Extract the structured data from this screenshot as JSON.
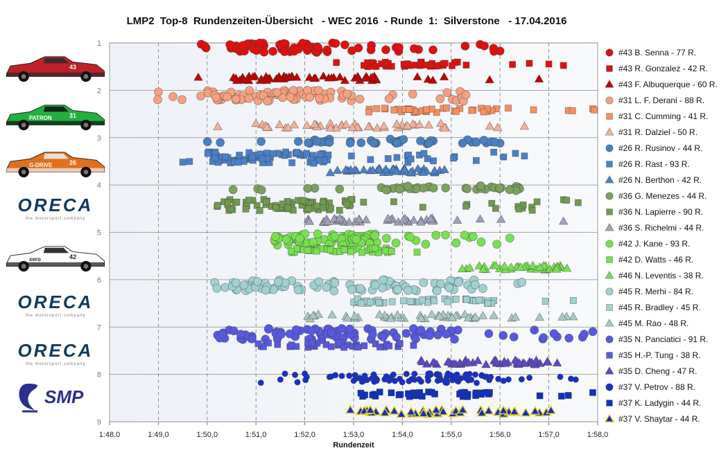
{
  "chart_data": {
    "type": "scatter",
    "title": "LMP2  Top-8  Rundenzeiten-Übersicht   - WEC 2016  - Runde  1:  Silverstone   - 17.04.2016",
    "xlabel": "Rundenzeit",
    "ylabel": "",
    "x_ticks": [
      "1:48,0",
      "1:49,0",
      "1:50,0",
      "1:51,0",
      "1:52,0",
      "1:53,0",
      "1:54,0",
      "1:55,0",
      "1:56,0",
      "1:57,0",
      "1:58,0"
    ],
    "xlim_seconds": [
      108,
      118
    ],
    "y_ticks": [
      "1",
      "2",
      "3",
      "4",
      "5",
      "6",
      "7",
      "8",
      "9"
    ],
    "ylim": [
      1,
      9
    ],
    "y_reversed": true,
    "x_grid": true,
    "y_grid": true,
    "legend_position": "right",
    "series": [
      {
        "name": "#43 B. Senna - 77 R.",
        "marker": "circle",
        "color": "#e01010",
        "y": 1.1,
        "spread": 0.1,
        "count": 77,
        "x_range": [
          109.65,
          116.0
        ],
        "dense": [
          110.4,
          113.0
        ],
        "outliers": [
          116.0
        ]
      },
      {
        "name": "#43 R. Gonzalez - 42 R.",
        "marker": "square",
        "color": "#e01010",
        "y": 1.45,
        "spread": 0.05,
        "count": 42,
        "x_range": [
          112.5,
          117.3
        ],
        "dense": [
          113.2,
          115.4
        ],
        "outliers": [
          116.6,
          117.0,
          117.3
        ]
      },
      {
        "name": "#43 F. Albuquerque - 60 R.",
        "marker": "triangle",
        "color": "#c00000",
        "y": 1.75,
        "spread": 0.05,
        "count": 60,
        "x_range": [
          109.8,
          116.8
        ],
        "dense": [
          110.5,
          113.5
        ],
        "outliers": [
          116.8
        ]
      },
      {
        "name": "#31 L. F. Derani - 88 R.",
        "marker": "circle",
        "color": "#f5a080",
        "y": 2.12,
        "spread": 0.12,
        "count": 88,
        "x_range": [
          108.9,
          115.5
        ],
        "dense": [
          110.0,
          113.0
        ],
        "outliers": [
          109.0,
          109.3
        ]
      },
      {
        "name": "#31 C. Cumming - 41 R.",
        "marker": "square",
        "color": "#f59060",
        "y": 2.42,
        "spread": 0.05,
        "count": 41,
        "x_range": [
          113.3,
          118.0
        ],
        "dense": [
          113.3,
          116.0
        ],
        "outliers": [
          117.4,
          117.9
        ]
      },
      {
        "name": "#31 R. Dalziel - 50 R.",
        "marker": "triangle",
        "color": "#f5b09a",
        "y": 2.75,
        "spread": 0.05,
        "count": 50,
        "x_range": [
          109.9,
          116.7
        ],
        "dense": [
          111.0,
          115.0
        ],
        "outliers": [
          116.5
        ]
      },
      {
        "name": "#26 R. Rusinov - 44 R.",
        "marker": "circle",
        "color": "#4a7fc0",
        "y": 3.08,
        "spread": 0.05,
        "count": 44,
        "x_range": [
          110.0,
          116.0
        ],
        "dense": [
          112.0,
          115.0
        ],
        "outliers": [
          115.5,
          116.0
        ]
      },
      {
        "name": "#26 R. Rast - 93 R.",
        "marker": "square",
        "color": "#4a80c8",
        "y": 3.42,
        "spread": 0.12,
        "count": 93,
        "x_range": [
          109.5,
          116.5
        ],
        "dense": [
          110.0,
          112.5
        ],
        "outliers": [
          109.5,
          116.5
        ]
      },
      {
        "name": "#26 N. Berthon - 42 R.",
        "marker": "triangle",
        "color": "#4a80c8",
        "y": 3.7,
        "spread": 0.05,
        "count": 42,
        "x_range": [
          112.5,
          115.0
        ],
        "dense": [
          112.8,
          114.8
        ],
        "outliers": []
      },
      {
        "name": "#36 G. Menezes - 44 R.",
        "marker": "circle",
        "color": "#7ba060",
        "y": 4.07,
        "spread": 0.05,
        "count": 44,
        "x_range": [
          110.3,
          117.3
        ],
        "dense": [
          113.5,
          116.5
        ],
        "outliers": []
      },
      {
        "name": "#36 N. Lapierre - 90 R.",
        "marker": "square",
        "color": "#709a50",
        "y": 4.42,
        "spread": 0.12,
        "count": 90,
        "x_range": [
          109.9,
          117.6
        ],
        "dense": [
          110.2,
          113.0
        ],
        "outliers": [
          117.3,
          117.6
        ]
      },
      {
        "name": "#36 S. Richelmi - 44 R.",
        "marker": "triangle",
        "color": "#a0a0b8",
        "y": 4.75,
        "spread": 0.05,
        "count": 44,
        "x_range": [
          112.0,
          117.3
        ],
        "dense": [
          112.3,
          115.0
        ],
        "outliers": [
          117.3
        ]
      },
      {
        "name": "#42 J. Kane - 93 R.",
        "marker": "circle",
        "color": "#78e050",
        "y": 5.15,
        "spread": 0.12,
        "count": 93,
        "x_range": [
          111.0,
          116.2
        ],
        "dense": [
          111.3,
          113.5
        ],
        "outliers": [
          115.1,
          116.2
        ]
      },
      {
        "name": "#42 D. Watts - 46 R.",
        "marker": "square",
        "color": "#78e050",
        "y": 5.38,
        "spread": 0.05,
        "count": 46,
        "x_range": [
          111.5,
          114.3
        ],
        "dense": [
          111.5,
          113.8
        ],
        "outliers": [
          114.3
        ]
      },
      {
        "name": "#46 N. Leventis - 38 R.",
        "marker": "triangle",
        "color": "#78e050",
        "y": 5.75,
        "spread": 0.05,
        "count": 38,
        "x_range": [
          115.0,
          118.0
        ],
        "dense": [
          115.5,
          117.5
        ],
        "outliers": []
      },
      {
        "name": "#45 R. Merhi - 84 R.",
        "marker": "circle",
        "color": "#a0d0d0",
        "y": 6.12,
        "spread": 0.12,
        "count": 84,
        "x_range": [
          110.1,
          116.5
        ],
        "dense": [
          110.5,
          115.5
        ],
        "outliers": []
      },
      {
        "name": "#45 R. Bradley - 45 R.",
        "marker": "square",
        "color": "#a0d0d0",
        "y": 6.45,
        "spread": 0.05,
        "count": 45,
        "x_range": [
          113.0,
          117.5
        ],
        "dense": [
          113.0,
          116.0
        ],
        "outliers": [
          117.5
        ]
      },
      {
        "name": "#45 M. Rao - 48 R.",
        "marker": "triangle",
        "color": "#a8c8c0",
        "y": 6.78,
        "spread": 0.05,
        "count": 48,
        "x_range": [
          111.8,
          117.5
        ],
        "dense": [
          112.0,
          116.0
        ],
        "outliers": [
          117.5
        ]
      },
      {
        "name": "#35 N. Panciatici - 91 R.",
        "marker": "circle",
        "color": "#5858e0",
        "y": 7.15,
        "spread": 0.12,
        "count": 91,
        "x_range": [
          110.0,
          117.9
        ],
        "dense": [
          110.2,
          115.0
        ],
        "outliers": [
          117.9
        ]
      },
      {
        "name": "#35 H.-P. Tung - 38 R.",
        "marker": "square",
        "color": "#5858e0",
        "y": 7.38,
        "spread": 0.05,
        "count": 38,
        "x_range": [
          111.0,
          114.5
        ],
        "dense": [
          111.0,
          114.0
        ],
        "outliers": []
      },
      {
        "name": "#35 D. Cheng - 47 R.",
        "marker": "triangle",
        "color": "#6048c8",
        "y": 7.75,
        "spread": 0.05,
        "count": 47,
        "x_range": [
          114.2,
          117.9
        ],
        "dense": [
          114.5,
          117.0
        ],
        "outliers": []
      },
      {
        "name": "#37 V. Petrov - 88 R.",
        "marker": "circle",
        "color": "#1830c8",
        "y": 8.08,
        "spread": 0.1,
        "count": 88,
        "x_range": [
          111.0,
          117.6
        ],
        "dense": [
          113.0,
          116.0
        ],
        "outliers": [
          111.1,
          111.5,
          111.8,
          112.0
        ]
      },
      {
        "name": "#37 K. Ladygin - 44 R.",
        "marker": "square",
        "color": "#1030c0",
        "y": 8.42,
        "spread": 0.05,
        "count": 44,
        "x_range": [
          112.3,
          117.9
        ],
        "dense": [
          113.0,
          116.0
        ],
        "outliers": [
          117.4,
          117.9
        ]
      },
      {
        "name": "#37 V. Shaytar - 44 R.",
        "marker": "triangle",
        "color": "#1030c0",
        "y": 8.8,
        "spread": 0.05,
        "count": 44,
        "x_range": [
          112.7,
          117.2
        ],
        "dense": [
          113.0,
          116.3
        ],
        "outliers": []
      }
    ]
  },
  "team_logos": [
    {
      "name": "car-43-red-logo",
      "type": "car",
      "number": "43",
      "body": "#c0202a",
      "accent": "#2a2a2a"
    },
    {
      "name": "car-31-green-logo",
      "type": "car",
      "number": "31",
      "body": "#20b040",
      "accent": "#101010",
      "sponsor": "PATRON"
    },
    {
      "name": "car-26-orange-logo",
      "type": "car",
      "number": "26",
      "body": "#e07020",
      "accent": "#f0f0f0",
      "sponsor": "G-DRIVE"
    },
    {
      "name": "oreca-logo-1",
      "type": "brand",
      "word": "ORECA",
      "tag": "the motorsport company"
    },
    {
      "name": "car-42-white-logo",
      "type": "car",
      "number": "42",
      "body": "#ffffff",
      "accent": "#101010",
      "sponsor": "xero"
    },
    {
      "name": "oreca-logo-2",
      "type": "brand",
      "word": "ORECA",
      "tag": "the motorsport company"
    },
    {
      "name": "oreca-logo-3",
      "type": "brand",
      "word": "ORECA",
      "tag": "the motorsport company"
    },
    {
      "name": "smp-logo",
      "type": "smp",
      "word": "SMP"
    }
  ]
}
